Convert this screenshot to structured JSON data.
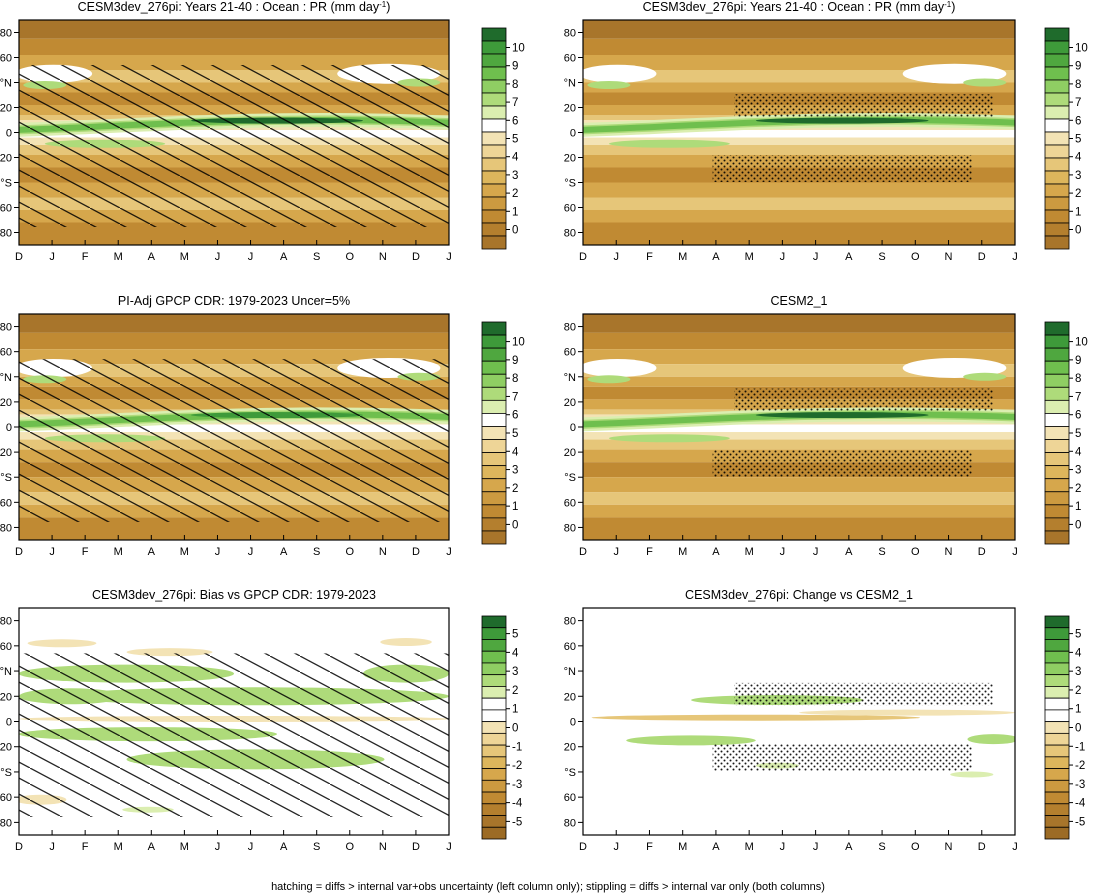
{
  "figure": {
    "footnote": "hatching = diffs > internal var+obs uncertainty (left column only); stippling = diffs > internal var only (both columns)"
  },
  "colors": {
    "brown_dark": "#a8752b",
    "brown": "#c08a33",
    "tan": "#d6a74c",
    "tan_light": "#e6c679",
    "cream": "#f3e3b5",
    "white": "#ffffff",
    "green_pale": "#dbeeb0",
    "green_light": "#aedb7a",
    "green": "#6fbf4e",
    "green_mid": "#3e9a3a",
    "green_dark": "#1f6b2c"
  },
  "colorbars": {
    "pr_levels": [
      "10",
      "9",
      "8",
      "7",
      "6",
      "5",
      "4",
      "3",
      "2",
      "1",
      "0"
    ],
    "diff_levels": [
      "5",
      "4",
      "3",
      "2",
      "1",
      "0",
      "-1",
      "-2",
      "-3",
      "-4",
      "-5"
    ]
  },
  "chart_data": [
    {
      "id": "model-clim",
      "type": "heatmap",
      "title": "CESM3dev_276pi: Years 21-40 : Ocean : PR (mm day",
      "title_superscript": "-1",
      "title_suffix": ")",
      "x_ticks": [
        "D",
        "J",
        "F",
        "M",
        "A",
        "M",
        "J",
        "J",
        "A",
        "S",
        "O",
        "N",
        "D",
        "J"
      ],
      "y_ticks": [
        "80",
        "60",
        "°N",
        "20",
        "0",
        "20",
        "°S",
        "60",
        "80"
      ],
      "ylim": [
        -90,
        90
      ],
      "levels": [
        "10",
        "9",
        "8",
        "7",
        "6",
        "5",
        "4",
        "3",
        "2",
        "1",
        "0"
      ],
      "overlay": "hatching",
      "itcz_peak_mm_day": 10
    },
    {
      "id": "model-clim-stipple",
      "type": "heatmap",
      "title": "CESM3dev_276pi: Years 21-40 : Ocean : PR (mm day",
      "title_superscript": "-1",
      "title_suffix": ")",
      "x_ticks": [
        "D",
        "J",
        "F",
        "M",
        "A",
        "M",
        "J",
        "J",
        "A",
        "S",
        "O",
        "N",
        "D",
        "J"
      ],
      "y_ticks": [
        "80",
        "60",
        "°N",
        "20",
        "0",
        "20",
        "°S",
        "60",
        "80"
      ],
      "ylim": [
        -90,
        90
      ],
      "levels": [
        "10",
        "9",
        "8",
        "7",
        "6",
        "5",
        "4",
        "3",
        "2",
        "1",
        "0"
      ],
      "overlay": "stippling",
      "itcz_peak_mm_day": 10
    },
    {
      "id": "obs-clim",
      "type": "heatmap",
      "title": "PI-Adj GPCP CDR: 1979-2023 Uncer=5%",
      "x_ticks": [
        "D",
        "J",
        "F",
        "M",
        "A",
        "M",
        "J",
        "J",
        "A",
        "S",
        "O",
        "N",
        "D",
        "J"
      ],
      "y_ticks": [
        "80",
        "60",
        "°N",
        "20",
        "0",
        "20",
        "°S",
        "60",
        "80"
      ],
      "ylim": [
        -90,
        90
      ],
      "levels": [
        "10",
        "9",
        "8",
        "7",
        "6",
        "5",
        "4",
        "3",
        "2",
        "1",
        "0"
      ],
      "overlay": "hatching",
      "itcz_peak_mm_day": 8
    },
    {
      "id": "cesm2-clim",
      "type": "heatmap",
      "title": "CESM2_1",
      "x_ticks": [
        "D",
        "J",
        "F",
        "M",
        "A",
        "M",
        "J",
        "J",
        "A",
        "S",
        "O",
        "N",
        "D",
        "J"
      ],
      "y_ticks": [
        "80",
        "60",
        "°N",
        "20",
        "0",
        "20",
        "°S",
        "60",
        "80"
      ],
      "ylim": [
        -90,
        90
      ],
      "levels": [
        "10",
        "9",
        "8",
        "7",
        "6",
        "5",
        "4",
        "3",
        "2",
        "1",
        "0"
      ],
      "overlay": "stippling",
      "itcz_peak_mm_day": 10
    },
    {
      "id": "bias",
      "type": "heatmap",
      "title": "CESM3dev_276pi: Bias vs GPCP CDR: 1979-2023",
      "x_ticks": [
        "D",
        "J",
        "F",
        "M",
        "A",
        "M",
        "J",
        "J",
        "A",
        "S",
        "O",
        "N",
        "D",
        "J"
      ],
      "y_ticks": [
        "80",
        "60",
        "°N",
        "20",
        "0",
        "20",
        "°S",
        "60",
        "80"
      ],
      "ylim": [
        -90,
        90
      ],
      "levels": [
        "5",
        "4",
        "3",
        "2",
        "1",
        "0",
        "-1",
        "-2",
        "-3",
        "-4",
        "-5"
      ],
      "overlay": "hatching"
    },
    {
      "id": "change",
      "type": "heatmap",
      "title": "CESM3dev_276pi: Change vs CESM2_1",
      "x_ticks": [
        "D",
        "J",
        "F",
        "M",
        "A",
        "M",
        "J",
        "J",
        "A",
        "S",
        "O",
        "N",
        "D",
        "J"
      ],
      "y_ticks": [
        "80",
        "60",
        "°N",
        "20",
        "0",
        "20",
        "°S",
        "60",
        "80"
      ],
      "ylim": [
        -90,
        90
      ],
      "levels": [
        "5",
        "4",
        "3",
        "2",
        "1",
        "0",
        "-1",
        "-2",
        "-3",
        "-4",
        "-5"
      ],
      "overlay": "stippling"
    }
  ]
}
